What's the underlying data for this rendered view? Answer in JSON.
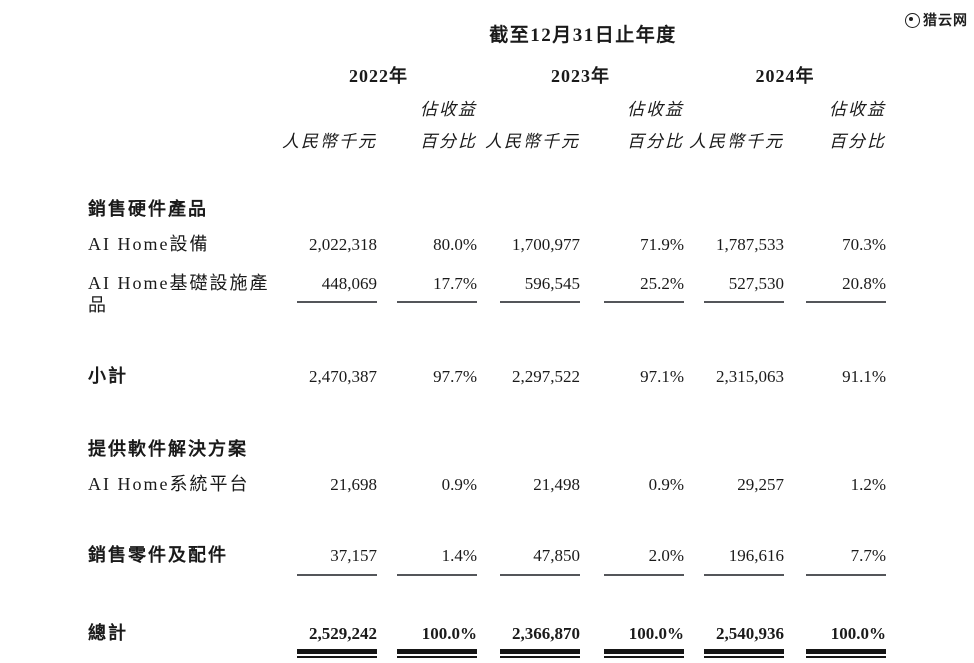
{
  "watermark": {
    "text": "猎云网"
  },
  "header": {
    "title": "截至12月31日止年度",
    "years": [
      "2022年",
      "2023年",
      "2024年"
    ],
    "pct_label_top": "佔收益",
    "amount_label": "人民幣千元",
    "pct_label_bottom": "百分比"
  },
  "rows": [
    {
      "kind": "section",
      "label": "銷售硬件產品",
      "values": [
        "",
        "",
        "",
        "",
        "",
        ""
      ],
      "underline": "none"
    },
    {
      "kind": "item",
      "label": "AI Home設備",
      "values": [
        "2,022,318",
        "80.0%",
        "1,700,977",
        "71.9%",
        "1,787,533",
        "70.3%"
      ],
      "underline": "none"
    },
    {
      "kind": "item",
      "label": "AI Home基礎設施產品",
      "values": [
        "448,069",
        "17.7%",
        "596,545",
        "25.2%",
        "527,530",
        "20.8%"
      ],
      "underline": "single"
    },
    {
      "kind": "subtotal",
      "label": "小計",
      "values": [
        "2,470,387",
        "97.7%",
        "2,297,522",
        "97.1%",
        "2,315,063",
        "91.1%"
      ],
      "underline": "none"
    },
    {
      "kind": "section",
      "label": "提供軟件解決方案",
      "values": [
        "",
        "",
        "",
        "",
        "",
        ""
      ],
      "underline": "none"
    },
    {
      "kind": "item",
      "label": "AI Home系統平台",
      "values": [
        "21,698",
        "0.9%",
        "21,498",
        "0.9%",
        "29,257",
        "1.2%"
      ],
      "underline": "none"
    },
    {
      "kind": "item-group",
      "label": "銷售零件及配件",
      "values": [
        "37,157",
        "1.4%",
        "47,850",
        "2.0%",
        "196,616",
        "7.7%"
      ],
      "underline": "single"
    },
    {
      "kind": "total",
      "label": "總計",
      "values": [
        "2,529,242",
        "100.0%",
        "2,366,870",
        "100.0%",
        "2,540,936",
        "100.0%"
      ],
      "underline": "double"
    }
  ]
}
